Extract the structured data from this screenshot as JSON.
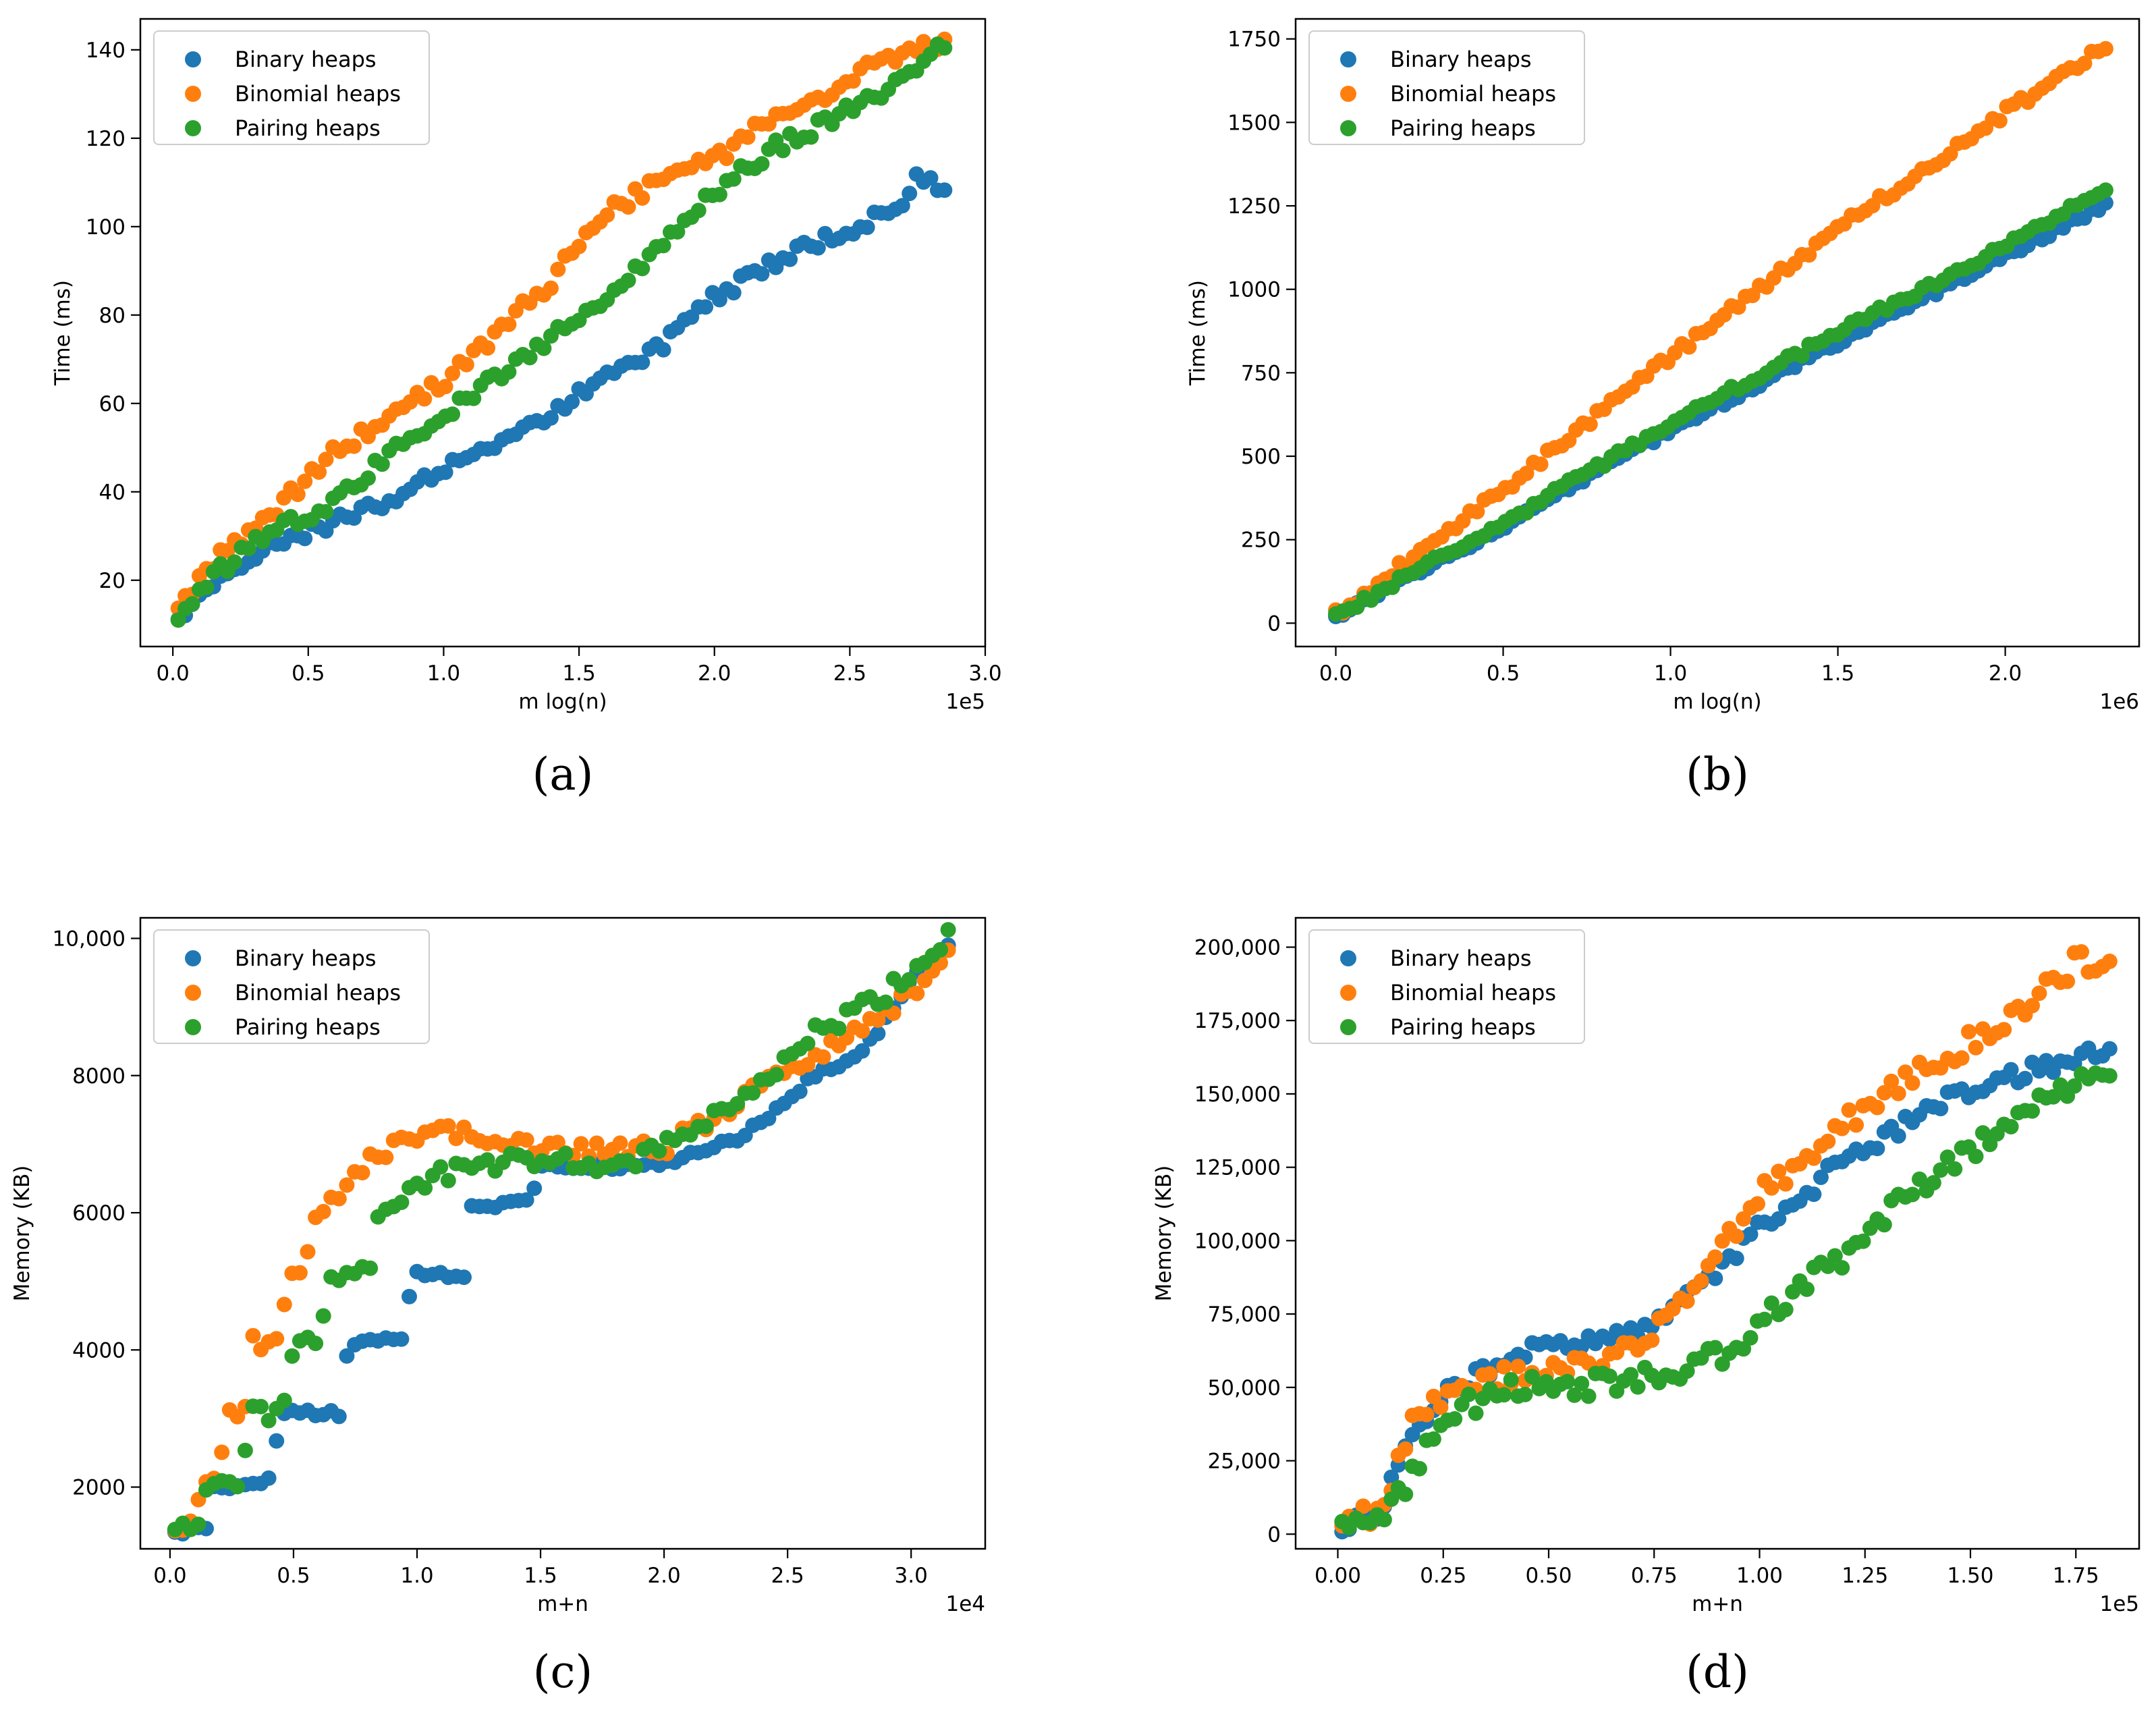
{
  "chart_data": [
    {
      "id": "a",
      "type": "scatter",
      "caption": "(a)",
      "xlabel": "m log(n)",
      "ylabel": "Time (ms)",
      "x_offset_text": "1e5",
      "xlim": [
        -0.12,
        3.0
      ],
      "ylim": [
        5,
        147
      ],
      "xticks": [
        0.0,
        0.5,
        1.0,
        1.5,
        2.0,
        2.5,
        3.0
      ],
      "xtick_labels": [
        "0.0",
        "0.5",
        "1.0",
        "1.5",
        "2.0",
        "2.5",
        "3.0"
      ],
      "yticks": [
        20,
        40,
        60,
        80,
        100,
        120,
        140
      ],
      "ytick_labels": [
        "20",
        "40",
        "60",
        "80",
        "100",
        "120",
        "140"
      ],
      "legend_position": "top-left",
      "x_range": [
        0.02,
        2.85
      ],
      "n_points": 110,
      "series": [
        {
          "name": "Binary heaps",
          "color": "#1f77b4",
          "points": [
            [
              0.02,
              10
            ],
            [
              0.1,
              17
            ],
            [
              0.3,
              26
            ],
            [
              0.5,
              31
            ],
            [
              0.8,
              38
            ],
            [
              1.0,
              45
            ],
            [
              1.2,
              50
            ],
            [
              1.4,
              58
            ],
            [
              1.6,
              66
            ],
            [
              1.8,
              73
            ],
            [
              2.0,
              84
            ],
            [
              2.2,
              91
            ],
            [
              2.4,
              97
            ],
            [
              2.6,
              102
            ],
            [
              2.7,
              106
            ],
            [
              2.75,
              111
            ],
            [
              2.85,
              108
            ]
          ],
          "noise": 1.5
        },
        {
          "name": "Binomial heaps",
          "color": "#ff7f0e",
          "points": [
            [
              0.02,
              12
            ],
            [
              0.1,
              21
            ],
            [
              0.2,
              27
            ],
            [
              0.4,
              37
            ],
            [
              0.6,
              49
            ],
            [
              0.8,
              57
            ],
            [
              1.0,
              65
            ],
            [
              1.2,
              76
            ],
            [
              1.4,
              88
            ],
            [
              1.6,
              103
            ],
            [
              1.8,
              110
            ],
            [
              2.0,
              115
            ],
            [
              2.2,
              124
            ],
            [
              2.4,
              130
            ],
            [
              2.6,
              137
            ],
            [
              2.85,
              142
            ]
          ],
          "noise": 1.8
        },
        {
          "name": "Pairing heaps",
          "color": "#2ca02c",
          "points": [
            [
              0.02,
              12
            ],
            [
              0.1,
              18
            ],
            [
              0.3,
              29
            ],
            [
              0.5,
              35
            ],
            [
              0.65,
              40
            ],
            [
              0.8,
              49
            ],
            [
              1.0,
              58
            ],
            [
              1.2,
              66
            ],
            [
              1.4,
              75
            ],
            [
              1.6,
              84
            ],
            [
              1.8,
              95
            ],
            [
              2.0,
              108
            ],
            [
              2.2,
              117
            ],
            [
              2.4,
              123
            ],
            [
              2.6,
              130
            ],
            [
              2.85,
              141
            ]
          ],
          "noise": 1.8
        }
      ]
    },
    {
      "id": "b",
      "type": "scatter",
      "caption": "(b)",
      "xlabel": "m log(n)",
      "ylabel": "Time (ms)",
      "x_offset_text": "1e6",
      "xlim": [
        -0.12,
        2.4
      ],
      "ylim": [
        -70,
        1810
      ],
      "xticks": [
        0.0,
        0.5,
        1.0,
        1.5,
        2.0
      ],
      "xtick_labels": [
        "0.0",
        "0.5",
        "1.0",
        "1.5",
        "2.0"
      ],
      "yticks": [
        0,
        250,
        500,
        750,
        1000,
        1250,
        1500,
        1750
      ],
      "ytick_labels": [
        "0",
        "250",
        "500",
        "750",
        "1000",
        "1250",
        "1500",
        "1750"
      ],
      "legend_position": "top-left",
      "x_range": [
        0.0,
        2.3
      ],
      "n_points": 110,
      "series": [
        {
          "name": "Binary heaps",
          "color": "#1f77b4",
          "points": [
            [
              0.0,
              20
            ],
            [
              0.5,
              290
            ],
            [
              1.0,
              580
            ],
            [
              1.5,
              840
            ],
            [
              2.0,
              1100
            ],
            [
              2.3,
              1255
            ]
          ],
          "noise": 10
        },
        {
          "name": "Binomial heaps",
          "color": "#ff7f0e",
          "points": [
            [
              0.0,
              25
            ],
            [
              0.5,
              400
            ],
            [
              1.0,
              800
            ],
            [
              1.5,
              1180
            ],
            [
              2.0,
              1530
            ],
            [
              2.3,
              1730
            ]
          ],
          "noise": 15
        },
        {
          "name": "Pairing heaps",
          "color": "#2ca02c",
          "points": [
            [
              0.0,
              22
            ],
            [
              0.5,
              300
            ],
            [
              1.0,
              600
            ],
            [
              1.5,
              870
            ],
            [
              2.0,
              1130
            ],
            [
              2.3,
              1305
            ]
          ],
          "noise": 12
        }
      ]
    },
    {
      "id": "c",
      "type": "scatter",
      "caption": "(c)",
      "xlabel": "m+n",
      "ylabel": "Memory (KB)",
      "x_offset_text": "1e4",
      "xlim": [
        -0.12,
        3.3
      ],
      "ylim": [
        1100,
        10300
      ],
      "xticks": [
        0.0,
        0.5,
        1.0,
        1.5,
        2.0,
        2.5,
        3.0
      ],
      "xtick_labels": [
        "0.0",
        "0.5",
        "1.0",
        "1.5",
        "2.0",
        "2.5",
        "3.0"
      ],
      "yticks": [
        2000,
        4000,
        6000,
        8000,
        10000
      ],
      "ytick_labels": [
        "2000",
        "4000",
        "6000",
        "8000",
        "10,000"
      ],
      "legend_position": "top-left",
      "x_range": [
        0.02,
        3.15
      ],
      "n_points": 100,
      "series": [
        {
          "name": "Binary heaps",
          "color": "#1f77b4",
          "points": [
            [
              0.02,
              1330
            ],
            [
              0.15,
              1420
            ],
            [
              0.18,
              2000
            ],
            [
              0.4,
              2080
            ],
            [
              0.45,
              3070
            ],
            [
              0.7,
              3080
            ],
            [
              0.72,
              4100
            ],
            [
              0.95,
              4200
            ],
            [
              0.98,
              5120
            ],
            [
              1.2,
              5100
            ],
            [
              1.22,
              6100
            ],
            [
              1.45,
              6150
            ],
            [
              1.5,
              6650
            ],
            [
              2.0,
              6700
            ],
            [
              2.3,
              7100
            ],
            [
              2.5,
              7600
            ],
            [
              2.6,
              8000
            ],
            [
              2.8,
              8300
            ],
            [
              3.0,
              9400
            ],
            [
              3.15,
              9900
            ]
          ],
          "noise": 50
        },
        {
          "name": "Binomial heaps",
          "color": "#ff7f0e",
          "points": [
            [
              0.02,
              1330
            ],
            [
              0.1,
              1400
            ],
            [
              0.12,
              2060
            ],
            [
              0.2,
              2060
            ],
            [
              0.22,
              3080
            ],
            [
              0.32,
              3080
            ],
            [
              0.33,
              4100
            ],
            [
              0.45,
              4100
            ],
            [
              0.47,
              5100
            ],
            [
              0.55,
              5200
            ],
            [
              0.6,
              6100
            ],
            [
              0.7,
              6200
            ],
            [
              0.8,
              6800
            ],
            [
              1.0,
              7100
            ],
            [
              1.2,
              7200
            ],
            [
              1.4,
              7000
            ],
            [
              1.7,
              6900
            ],
            [
              2.0,
              6950
            ],
            [
              2.2,
              7400
            ],
            [
              2.5,
              8100
            ],
            [
              2.8,
              8700
            ],
            [
              3.0,
              9200
            ],
            [
              3.15,
              9750
            ]
          ],
          "noise": 120
        },
        {
          "name": "Pairing heaps",
          "color": "#2ca02c",
          "points": [
            [
              0.02,
              1330
            ],
            [
              0.12,
              1400
            ],
            [
              0.13,
              2050
            ],
            [
              0.3,
              2060
            ],
            [
              0.31,
              3070
            ],
            [
              0.45,
              3100
            ],
            [
              0.5,
              4100
            ],
            [
              0.6,
              4200
            ],
            [
              0.65,
              5100
            ],
            [
              0.8,
              5100
            ],
            [
              0.85,
              6000
            ],
            [
              1.0,
              6400
            ],
            [
              1.2,
              6700
            ],
            [
              1.5,
              6800
            ],
            [
              1.8,
              6600
            ],
            [
              2.0,
              7000
            ],
            [
              2.3,
              7600
            ],
            [
              2.6,
              8600
            ],
            [
              2.9,
              9200
            ],
            [
              3.15,
              10050
            ]
          ],
          "noise": 130
        }
      ]
    },
    {
      "id": "d",
      "type": "scatter",
      "caption": "(d)",
      "xlabel": "m+n",
      "ylabel": "Memory (KB)",
      "x_offset_text": "1e5",
      "xlim": [
        -0.1,
        1.9
      ],
      "ylim": [
        -5000,
        210000
      ],
      "xticks": [
        0.0,
        0.25,
        0.5,
        0.75,
        1.0,
        1.25,
        1.5,
        1.75
      ],
      "xtick_labels": [
        "0.00",
        "0.25",
        "0.50",
        "0.75",
        "1.00",
        "1.25",
        "1.50",
        "1.75"
      ],
      "yticks": [
        0,
        25000,
        50000,
        75000,
        100000,
        125000,
        150000,
        175000,
        200000
      ],
      "ytick_labels": [
        "0",
        "25,000",
        "50,000",
        "75,000",
        "100,000",
        "125,000",
        "150,000",
        "175,000",
        "200,000"
      ],
      "legend_position": "top-left",
      "x_range": [
        0.01,
        1.83
      ],
      "n_points": 110,
      "series": [
        {
          "name": "Binary heaps",
          "color": "#1f77b4",
          "points": [
            [
              0.01,
              3000
            ],
            [
              0.1,
              8000
            ],
            [
              0.15,
              25000
            ],
            [
              0.25,
              48000
            ],
            [
              0.35,
              55000
            ],
            [
              0.45,
              63000
            ],
            [
              0.6,
              65000
            ],
            [
              0.75,
              72000
            ],
            [
              0.9,
              88000
            ],
            [
              1.0,
              105000
            ],
            [
              1.1,
              115000
            ],
            [
              1.2,
              128000
            ],
            [
              1.35,
              140000
            ],
            [
              1.5,
              152000
            ],
            [
              1.65,
              158000
            ],
            [
              1.83,
              165000
            ]
          ],
          "noise": 3000
        },
        {
          "name": "Binomial heaps",
          "color": "#ff7f0e",
          "points": [
            [
              0.01,
              3000
            ],
            [
              0.1,
              8000
            ],
            [
              0.18,
              38000
            ],
            [
              0.3,
              52000
            ],
            [
              0.5,
              55000
            ],
            [
              0.65,
              58000
            ],
            [
              0.8,
              75000
            ],
            [
              0.9,
              95000
            ],
            [
              1.0,
              115000
            ],
            [
              1.2,
              140000
            ],
            [
              1.4,
              160000
            ],
            [
              1.6,
              175000
            ],
            [
              1.75,
              195000
            ],
            [
              1.83,
              195000
            ]
          ],
          "noise": 4000
        },
        {
          "name": "Pairing heaps",
          "color": "#2ca02c",
          "points": [
            [
              0.01,
              3000
            ],
            [
              0.1,
              7000
            ],
            [
              0.16,
              15000
            ],
            [
              0.25,
              40000
            ],
            [
              0.4,
              50000
            ],
            [
              0.6,
              51000
            ],
            [
              0.85,
              57000
            ],
            [
              0.95,
              65000
            ],
            [
              1.05,
              78000
            ],
            [
              1.2,
              95000
            ],
            [
              1.35,
              115000
            ],
            [
              1.5,
              130000
            ],
            [
              1.65,
              145000
            ],
            [
              1.83,
              158000
            ]
          ],
          "noise": 4000
        }
      ]
    }
  ]
}
